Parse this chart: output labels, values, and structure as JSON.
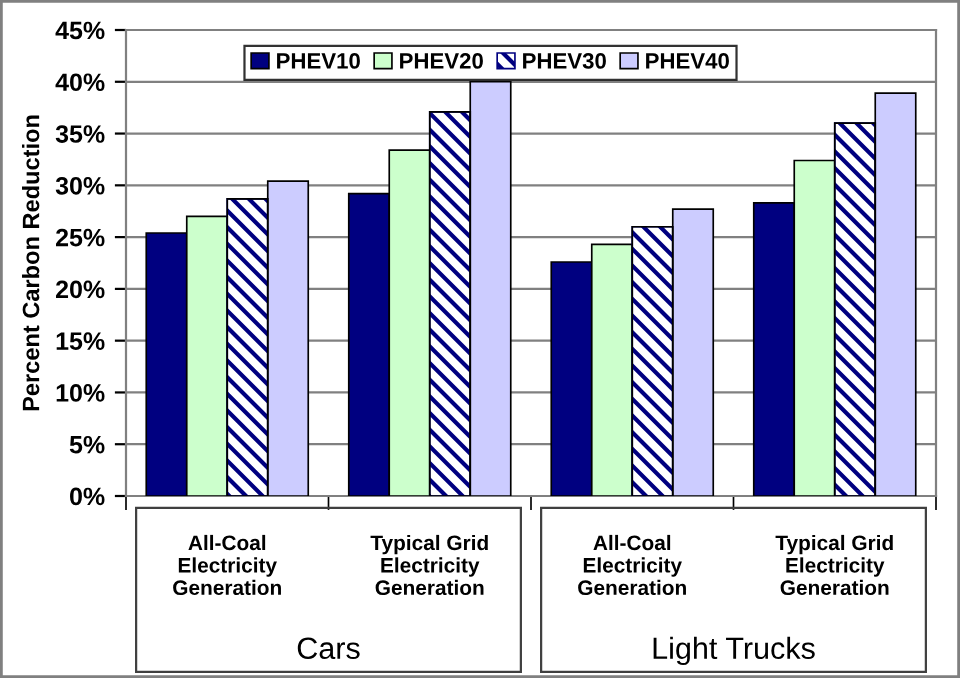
{
  "chart_data": {
    "type": "bar",
    "ylabel": "Percent Carbon Reduction",
    "categories": [
      "All-Coal\nElectricity\nGeneration",
      "Typical Grid\nElectricity\nGeneration",
      "All-Coal\nElectricity\nGeneration",
      "Typical Grid\nElectricity\nGeneration"
    ],
    "series": [
      {
        "name": "PHEV10",
        "color": "#000080",
        "values": [
          25.4,
          29.2,
          22.6,
          28.3
        ]
      },
      {
        "name": "PHEV20",
        "color": "#ccffcc",
        "values": [
          27.0,
          33.4,
          24.3,
          32.4
        ]
      },
      {
        "name": "PHEV30",
        "color": "#000080",
        "values": [
          28.7,
          37.1,
          26.0,
          36.0
        ]
      },
      {
        "name": "PHEV40",
        "color": "#ccccff",
        "values": [
          30.4,
          40.0,
          27.7,
          38.9
        ]
      }
    ],
    "annotations": [
      "Cars",
      "Light Trucks"
    ],
    "ylim": [
      0,
      45
    ],
    "yticks": [
      {
        "value": 0,
        "label": "0%"
      },
      {
        "value": 5,
        "label": "5%"
      },
      {
        "value": 10,
        "label": "10%"
      },
      {
        "value": 15,
        "label": "15%"
      },
      {
        "value": 20,
        "label": "20%"
      },
      {
        "value": 25,
        "label": "25%"
      },
      {
        "value": 30,
        "label": "30%"
      },
      {
        "value": 35,
        "label": "35%"
      },
      {
        "value": 40,
        "label": "40%"
      },
      {
        "value": 45,
        "label": "45%"
      }
    ],
    "grid": "y",
    "legend": "top"
  }
}
